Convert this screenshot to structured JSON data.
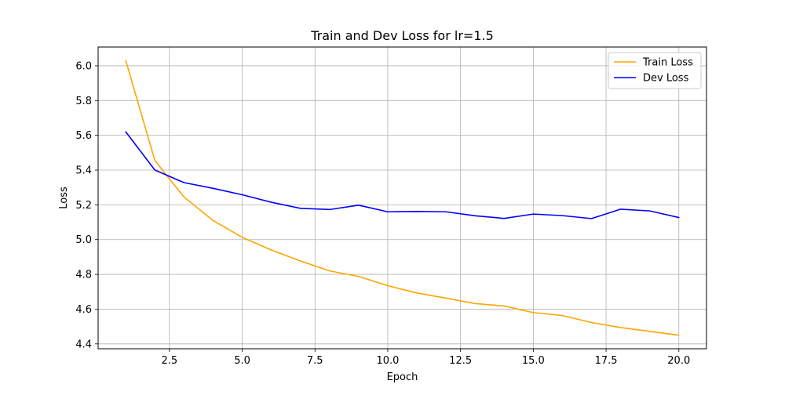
{
  "chart_data": {
    "type": "line",
    "title": "Train and Dev Loss for lr=1.5",
    "xlabel": "Epoch",
    "ylabel": "Loss",
    "xlim": [
      0.05,
      20.95
    ],
    "ylim": [
      4.372,
      6.108
    ],
    "xticks": [
      2.5,
      5.0,
      7.5,
      10.0,
      12.5,
      15.0,
      17.5,
      20.0
    ],
    "xtick_labels": [
      "2.5",
      "5.0",
      "7.5",
      "10.0",
      "12.5",
      "15.0",
      "17.5",
      "20.0"
    ],
    "yticks": [
      4.4,
      4.6,
      4.8,
      5.0,
      5.2,
      5.4,
      5.6,
      5.8,
      6.0
    ],
    "ytick_labels": [
      "4.4",
      "4.6",
      "4.8",
      "5.0",
      "5.2",
      "5.4",
      "5.6",
      "5.8",
      "6.0"
    ],
    "grid": true,
    "legend_position": "top-right",
    "x": [
      1,
      2,
      3,
      4,
      5,
      6,
      7,
      8,
      9,
      10,
      11,
      12,
      13,
      14,
      15,
      16,
      17,
      18,
      19,
      20
    ],
    "series": [
      {
        "name": "Train Loss",
        "color": "#ffa500",
        "values": [
          6.03,
          5.455,
          5.245,
          5.11,
          5.013,
          4.94,
          4.877,
          4.82,
          4.788,
          4.735,
          4.693,
          4.663,
          4.632,
          4.618,
          4.58,
          4.563,
          4.523,
          4.494,
          4.472,
          4.45
        ]
      },
      {
        "name": "Dev Loss",
        "color": "#0000ff",
        "values": [
          5.62,
          5.4,
          5.328,
          5.295,
          5.258,
          5.215,
          5.18,
          5.173,
          5.198,
          5.16,
          5.162,
          5.16,
          5.137,
          5.122,
          5.147,
          5.138,
          5.121,
          5.175,
          5.165,
          5.127
        ]
      }
    ]
  },
  "colors": {
    "grid": "#b0b0b0",
    "axes": "#000000",
    "legend_border": "#cccccc"
  }
}
